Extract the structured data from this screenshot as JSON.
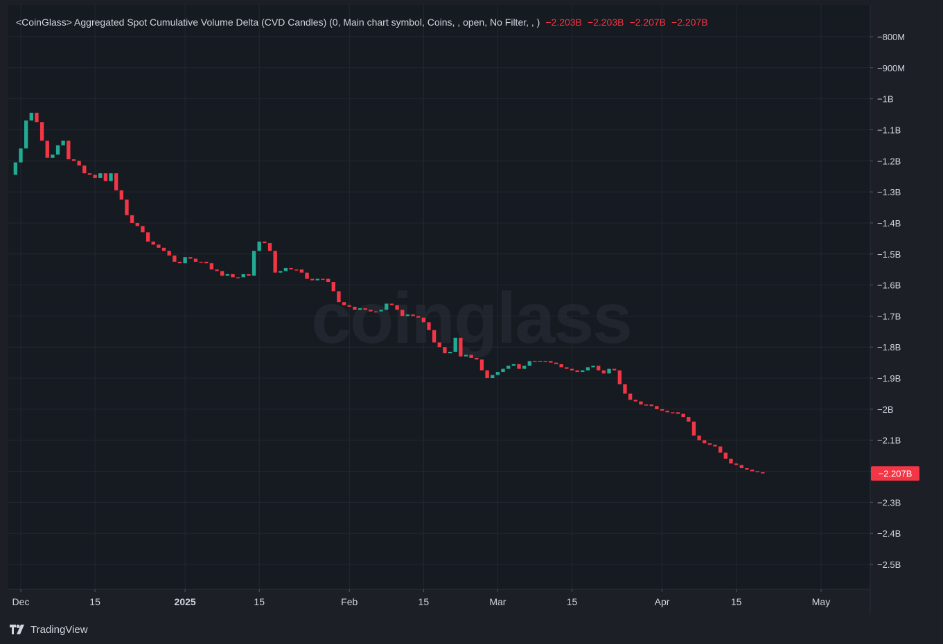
{
  "legend": {
    "title": "<CoinGlass> Aggregated Spot Cumulative Volume Delta (CVD Candles) (0, Main chart symbol, Coins, , open, No Filter, , )",
    "values": [
      "−2.203B",
      "−2.203B",
      "−2.207B",
      "−2.207B"
    ]
  },
  "watermark": "coinglass",
  "footer": {
    "brand": "TradingView",
    "logo_icon": "tradingview-logo-icon"
  },
  "colors": {
    "up": "#22ab94",
    "down": "#f23645",
    "background": "#1c1f26",
    "pane": "#161a21",
    "grid": "#232731",
    "text": "#d1d4dc"
  },
  "chart_data": {
    "type": "candlestick",
    "title": "",
    "y_unit": "B",
    "ylim": [
      -2.58,
      -0.75
    ],
    "y_ticks": [
      {
        "value": -0.8,
        "label": "−800M"
      },
      {
        "value": -0.9,
        "label": "−900M"
      },
      {
        "value": -1.0,
        "label": "−1B"
      },
      {
        "value": -1.1,
        "label": "−1.1B"
      },
      {
        "value": -1.2,
        "label": "−1.2B"
      },
      {
        "value": -1.3,
        "label": "−1.3B"
      },
      {
        "value": -1.4,
        "label": "−1.4B"
      },
      {
        "value": -1.5,
        "label": "−1.5B"
      },
      {
        "value": -1.6,
        "label": "−1.6B"
      },
      {
        "value": -1.7,
        "label": "−1.7B"
      },
      {
        "value": -1.8,
        "label": "−1.8B"
      },
      {
        "value": -1.9,
        "label": "−1.9B"
      },
      {
        "value": -2.0,
        "label": "−2B"
      },
      {
        "value": -2.1,
        "label": "−2.1B"
      },
      {
        "value": -2.2,
        "label": "−2.2B"
      },
      {
        "value": -2.3,
        "label": "−2.3B"
      },
      {
        "value": -2.4,
        "label": "−2.4B"
      },
      {
        "value": -2.5,
        "label": "−2.5B"
      }
    ],
    "x_start": "2024-11-30",
    "x_end": "2025-05-09",
    "x_ticks": [
      {
        "date": "2024-12-01",
        "label": "Dec",
        "bold": false
      },
      {
        "date": "2024-12-15",
        "label": "15",
        "bold": false
      },
      {
        "date": "2025-01-01",
        "label": "2025",
        "bold": true
      },
      {
        "date": "2025-01-15",
        "label": "15",
        "bold": false
      },
      {
        "date": "2025-02-01",
        "label": "Feb",
        "bold": false
      },
      {
        "date": "2025-02-15",
        "label": "15",
        "bold": false
      },
      {
        "date": "2025-03-01",
        "label": "Mar",
        "bold": false
      },
      {
        "date": "2025-03-15",
        "label": "15",
        "bold": false
      },
      {
        "date": "2025-04-01",
        "label": "Apr",
        "bold": false
      },
      {
        "date": "2025-04-15",
        "label": "15",
        "bold": false
      },
      {
        "date": "2025-05-01",
        "label": "May",
        "bold": false
      }
    ],
    "last_value": {
      "value": -2.207,
      "label": "−2.207B"
    },
    "series": [
      {
        "candles": [
          {
            "date": "2024-11-30",
            "open": -1.245,
            "close": -1.205
          },
          {
            "date": "2024-12-01",
            "open": -1.205,
            "close": -1.16
          },
          {
            "date": "2024-12-02",
            "open": -1.16,
            "close": -1.07
          },
          {
            "date": "2024-12-03",
            "open": -1.07,
            "close": -1.045
          },
          {
            "date": "2024-12-04",
            "open": -1.045,
            "close": -1.075
          },
          {
            "date": "2024-12-05",
            "open": -1.075,
            "close": -1.135
          },
          {
            "date": "2024-12-06",
            "open": -1.135,
            "close": -1.19
          },
          {
            "date": "2024-12-07",
            "open": -1.19,
            "close": -1.18
          },
          {
            "date": "2024-12-08",
            "open": -1.18,
            "close": -1.15
          },
          {
            "date": "2024-12-09",
            "open": -1.15,
            "close": -1.135
          },
          {
            "date": "2024-12-10",
            "open": -1.135,
            "close": -1.195
          },
          {
            "date": "2024-12-11",
            "open": -1.195,
            "close": -1.2
          },
          {
            "date": "2024-12-12",
            "open": -1.2,
            "close": -1.215
          },
          {
            "date": "2024-12-13",
            "open": -1.215,
            "close": -1.24
          },
          {
            "date": "2024-12-14",
            "open": -1.24,
            "close": -1.245
          },
          {
            "date": "2024-12-15",
            "open": -1.245,
            "close": -1.255
          },
          {
            "date": "2024-12-16",
            "open": -1.255,
            "close": -1.24
          },
          {
            "date": "2024-12-17",
            "open": -1.24,
            "close": -1.265
          },
          {
            "date": "2024-12-18",
            "open": -1.265,
            "close": -1.24
          },
          {
            "date": "2024-12-19",
            "open": -1.24,
            "close": -1.295
          },
          {
            "date": "2024-12-20",
            "open": -1.295,
            "close": -1.325
          },
          {
            "date": "2024-12-21",
            "open": -1.325,
            "close": -1.375
          },
          {
            "date": "2024-12-22",
            "open": -1.375,
            "close": -1.4
          },
          {
            "date": "2024-12-23",
            "open": -1.4,
            "close": -1.41
          },
          {
            "date": "2024-12-24",
            "open": -1.41,
            "close": -1.43
          },
          {
            "date": "2024-12-25",
            "open": -1.43,
            "close": -1.46
          },
          {
            "date": "2024-12-26",
            "open": -1.46,
            "close": -1.47
          },
          {
            "date": "2024-12-27",
            "open": -1.47,
            "close": -1.48
          },
          {
            "date": "2024-12-28",
            "open": -1.48,
            "close": -1.49
          },
          {
            "date": "2024-12-29",
            "open": -1.49,
            "close": -1.505
          },
          {
            "date": "2024-12-30",
            "open": -1.505,
            "close": -1.525
          },
          {
            "date": "2024-12-31",
            "open": -1.525,
            "close": -1.53
          },
          {
            "date": "2025-01-01",
            "open": -1.53,
            "close": -1.51
          },
          {
            "date": "2025-01-02",
            "open": -1.51,
            "close": -1.515
          },
          {
            "date": "2025-01-03",
            "open": -1.515,
            "close": -1.525
          },
          {
            "date": "2025-01-04",
            "open": -1.525,
            "close": -1.525
          },
          {
            "date": "2025-01-05",
            "open": -1.525,
            "close": -1.53
          },
          {
            "date": "2025-01-06",
            "open": -1.53,
            "close": -1.55
          },
          {
            "date": "2025-01-07",
            "open": -1.55,
            "close": -1.555
          },
          {
            "date": "2025-01-08",
            "open": -1.555,
            "close": -1.57
          },
          {
            "date": "2025-01-09",
            "open": -1.57,
            "close": -1.565
          },
          {
            "date": "2025-01-10",
            "open": -1.565,
            "close": -1.575
          },
          {
            "date": "2025-01-11",
            "open": -1.575,
            "close": -1.575
          },
          {
            "date": "2025-01-12",
            "open": -1.575,
            "close": -1.565
          },
          {
            "date": "2025-01-13",
            "open": -1.565,
            "close": -1.57
          },
          {
            "date": "2025-01-14",
            "open": -1.57,
            "close": -1.49
          },
          {
            "date": "2025-01-15",
            "open": -1.49,
            "close": -1.46
          },
          {
            "date": "2025-01-16",
            "open": -1.46,
            "close": -1.465
          },
          {
            "date": "2025-01-17",
            "open": -1.465,
            "close": -1.49
          },
          {
            "date": "2025-01-18",
            "open": -1.49,
            "close": -1.56
          },
          {
            "date": "2025-01-19",
            "open": -1.56,
            "close": -1.555
          },
          {
            "date": "2025-01-20",
            "open": -1.555,
            "close": -1.545
          },
          {
            "date": "2025-01-21",
            "open": -1.545,
            "close": -1.55
          },
          {
            "date": "2025-01-22",
            "open": -1.55,
            "close": -1.55
          },
          {
            "date": "2025-01-23",
            "open": -1.55,
            "close": -1.56
          },
          {
            "date": "2025-01-24",
            "open": -1.56,
            "close": -1.58
          },
          {
            "date": "2025-01-25",
            "open": -1.58,
            "close": -1.585
          },
          {
            "date": "2025-01-26",
            "open": -1.585,
            "close": -1.58
          },
          {
            "date": "2025-01-27",
            "open": -1.58,
            "close": -1.58
          },
          {
            "date": "2025-01-28",
            "open": -1.58,
            "close": -1.59
          },
          {
            "date": "2025-01-29",
            "open": -1.59,
            "close": -1.62
          },
          {
            "date": "2025-01-30",
            "open": -1.62,
            "close": -1.655
          },
          {
            "date": "2025-01-31",
            "open": -1.655,
            "close": -1.665
          },
          {
            "date": "2025-02-01",
            "open": -1.665,
            "close": -1.67
          },
          {
            "date": "2025-02-02",
            "open": -1.67,
            "close": -1.68
          },
          {
            "date": "2025-02-03",
            "open": -1.68,
            "close": -1.675
          },
          {
            "date": "2025-02-04",
            "open": -1.675,
            "close": -1.68
          },
          {
            "date": "2025-02-05",
            "open": -1.68,
            "close": -1.685
          },
          {
            "date": "2025-02-06",
            "open": -1.685,
            "close": -1.685
          },
          {
            "date": "2025-02-07",
            "open": -1.685,
            "close": -1.68
          },
          {
            "date": "2025-02-08",
            "open": -1.68,
            "close": -1.66
          },
          {
            "date": "2025-02-09",
            "open": -1.66,
            "close": -1.665
          },
          {
            "date": "2025-02-10",
            "open": -1.665,
            "close": -1.68
          },
          {
            "date": "2025-02-11",
            "open": -1.68,
            "close": -1.7
          },
          {
            "date": "2025-02-12",
            "open": -1.7,
            "close": -1.695
          },
          {
            "date": "2025-02-13",
            "open": -1.695,
            "close": -1.7
          },
          {
            "date": "2025-02-14",
            "open": -1.7,
            "close": -1.705
          },
          {
            "date": "2025-02-15",
            "open": -1.705,
            "close": -1.72
          },
          {
            "date": "2025-02-16",
            "open": -1.72,
            "close": -1.745
          },
          {
            "date": "2025-02-17",
            "open": -1.745,
            "close": -1.785
          },
          {
            "date": "2025-02-18",
            "open": -1.785,
            "close": -1.8
          },
          {
            "date": "2025-02-19",
            "open": -1.8,
            "close": -1.82
          },
          {
            "date": "2025-02-20",
            "open": -1.82,
            "close": -1.815
          },
          {
            "date": "2025-02-21",
            "open": -1.815,
            "close": -1.77
          },
          {
            "date": "2025-02-22",
            "open": -1.77,
            "close": -1.83
          },
          {
            "date": "2025-02-23",
            "open": -1.83,
            "close": -1.825
          },
          {
            "date": "2025-02-24",
            "open": -1.825,
            "close": -1.835
          },
          {
            "date": "2025-02-25",
            "open": -1.835,
            "close": -1.84
          },
          {
            "date": "2025-02-26",
            "open": -1.84,
            "close": -1.875
          },
          {
            "date": "2025-02-27",
            "open": -1.875,
            "close": -1.9
          },
          {
            "date": "2025-02-28",
            "open": -1.9,
            "close": -1.89
          },
          {
            "date": "2025-03-01",
            "open": -1.89,
            "close": -1.88
          },
          {
            "date": "2025-03-02",
            "open": -1.88,
            "close": -1.87
          },
          {
            "date": "2025-03-03",
            "open": -1.87,
            "close": -1.86
          },
          {
            "date": "2025-03-04",
            "open": -1.86,
            "close": -1.855
          },
          {
            "date": "2025-03-05",
            "open": -1.855,
            "close": -1.87
          },
          {
            "date": "2025-03-06",
            "open": -1.87,
            "close": -1.86
          },
          {
            "date": "2025-03-07",
            "open": -1.86,
            "close": -1.845
          },
          {
            "date": "2025-03-08",
            "open": -1.845,
            "close": -1.845
          },
          {
            "date": "2025-03-09",
            "open": -1.845,
            "close": -1.845
          },
          {
            "date": "2025-03-10",
            "open": -1.845,
            "close": -1.845
          },
          {
            "date": "2025-03-11",
            "open": -1.845,
            "close": -1.85
          },
          {
            "date": "2025-03-12",
            "open": -1.85,
            "close": -1.855
          },
          {
            "date": "2025-03-13",
            "open": -1.855,
            "close": -1.865
          },
          {
            "date": "2025-03-14",
            "open": -1.865,
            "close": -1.87
          },
          {
            "date": "2025-03-15",
            "open": -1.87,
            "close": -1.875
          },
          {
            "date": "2025-03-16",
            "open": -1.875,
            "close": -1.88
          },
          {
            "date": "2025-03-17",
            "open": -1.88,
            "close": -1.875
          },
          {
            "date": "2025-03-18",
            "open": -1.875,
            "close": -1.865
          },
          {
            "date": "2025-03-19",
            "open": -1.865,
            "close": -1.86
          },
          {
            "date": "2025-03-20",
            "open": -1.86,
            "close": -1.875
          },
          {
            "date": "2025-03-21",
            "open": -1.875,
            "close": -1.885
          },
          {
            "date": "2025-03-22",
            "open": -1.885,
            "close": -1.87
          },
          {
            "date": "2025-03-23",
            "open": -1.87,
            "close": -1.875
          },
          {
            "date": "2025-03-24",
            "open": -1.875,
            "close": -1.92
          },
          {
            "date": "2025-03-25",
            "open": -1.92,
            "close": -1.95
          },
          {
            "date": "2025-03-26",
            "open": -1.95,
            "close": -1.97
          },
          {
            "date": "2025-03-27",
            "open": -1.97,
            "close": -1.975
          },
          {
            "date": "2025-03-28",
            "open": -1.975,
            "close": -1.985
          },
          {
            "date": "2025-03-29",
            "open": -1.985,
            "close": -1.985
          },
          {
            "date": "2025-03-30",
            "open": -1.985,
            "close": -1.99
          },
          {
            "date": "2025-03-31",
            "open": -1.99,
            "close": -2.0
          },
          {
            "date": "2025-04-01",
            "open": -2.0,
            "close": -2.005
          },
          {
            "date": "2025-04-02",
            "open": -2.005,
            "close": -2.01
          },
          {
            "date": "2025-04-03",
            "open": -2.01,
            "close": -2.01
          },
          {
            "date": "2025-04-04",
            "open": -2.01,
            "close": -2.015
          },
          {
            "date": "2025-04-05",
            "open": -2.015,
            "close": -2.025
          },
          {
            "date": "2025-04-06",
            "open": -2.025,
            "close": -2.04
          },
          {
            "date": "2025-04-07",
            "open": -2.04,
            "close": -2.085
          },
          {
            "date": "2025-04-08",
            "open": -2.085,
            "close": -2.1
          },
          {
            "date": "2025-04-09",
            "open": -2.1,
            "close": -2.11
          },
          {
            "date": "2025-04-10",
            "open": -2.11,
            "close": -2.115
          },
          {
            "date": "2025-04-11",
            "open": -2.115,
            "close": -2.12
          },
          {
            "date": "2025-04-12",
            "open": -2.12,
            "close": -2.14
          },
          {
            "date": "2025-04-13",
            "open": -2.14,
            "close": -2.16
          },
          {
            "date": "2025-04-14",
            "open": -2.16,
            "close": -2.175
          },
          {
            "date": "2025-04-15",
            "open": -2.175,
            "close": -2.18
          },
          {
            "date": "2025-04-16",
            "open": -2.18,
            "close": -2.19
          },
          {
            "date": "2025-04-17",
            "open": -2.19,
            "close": -2.195
          },
          {
            "date": "2025-04-18",
            "open": -2.195,
            "close": -2.2
          },
          {
            "date": "2025-04-19",
            "open": -2.2,
            "close": -2.203
          },
          {
            "date": "2025-04-20",
            "open": -2.203,
            "close": -2.207
          }
        ]
      }
    ]
  }
}
